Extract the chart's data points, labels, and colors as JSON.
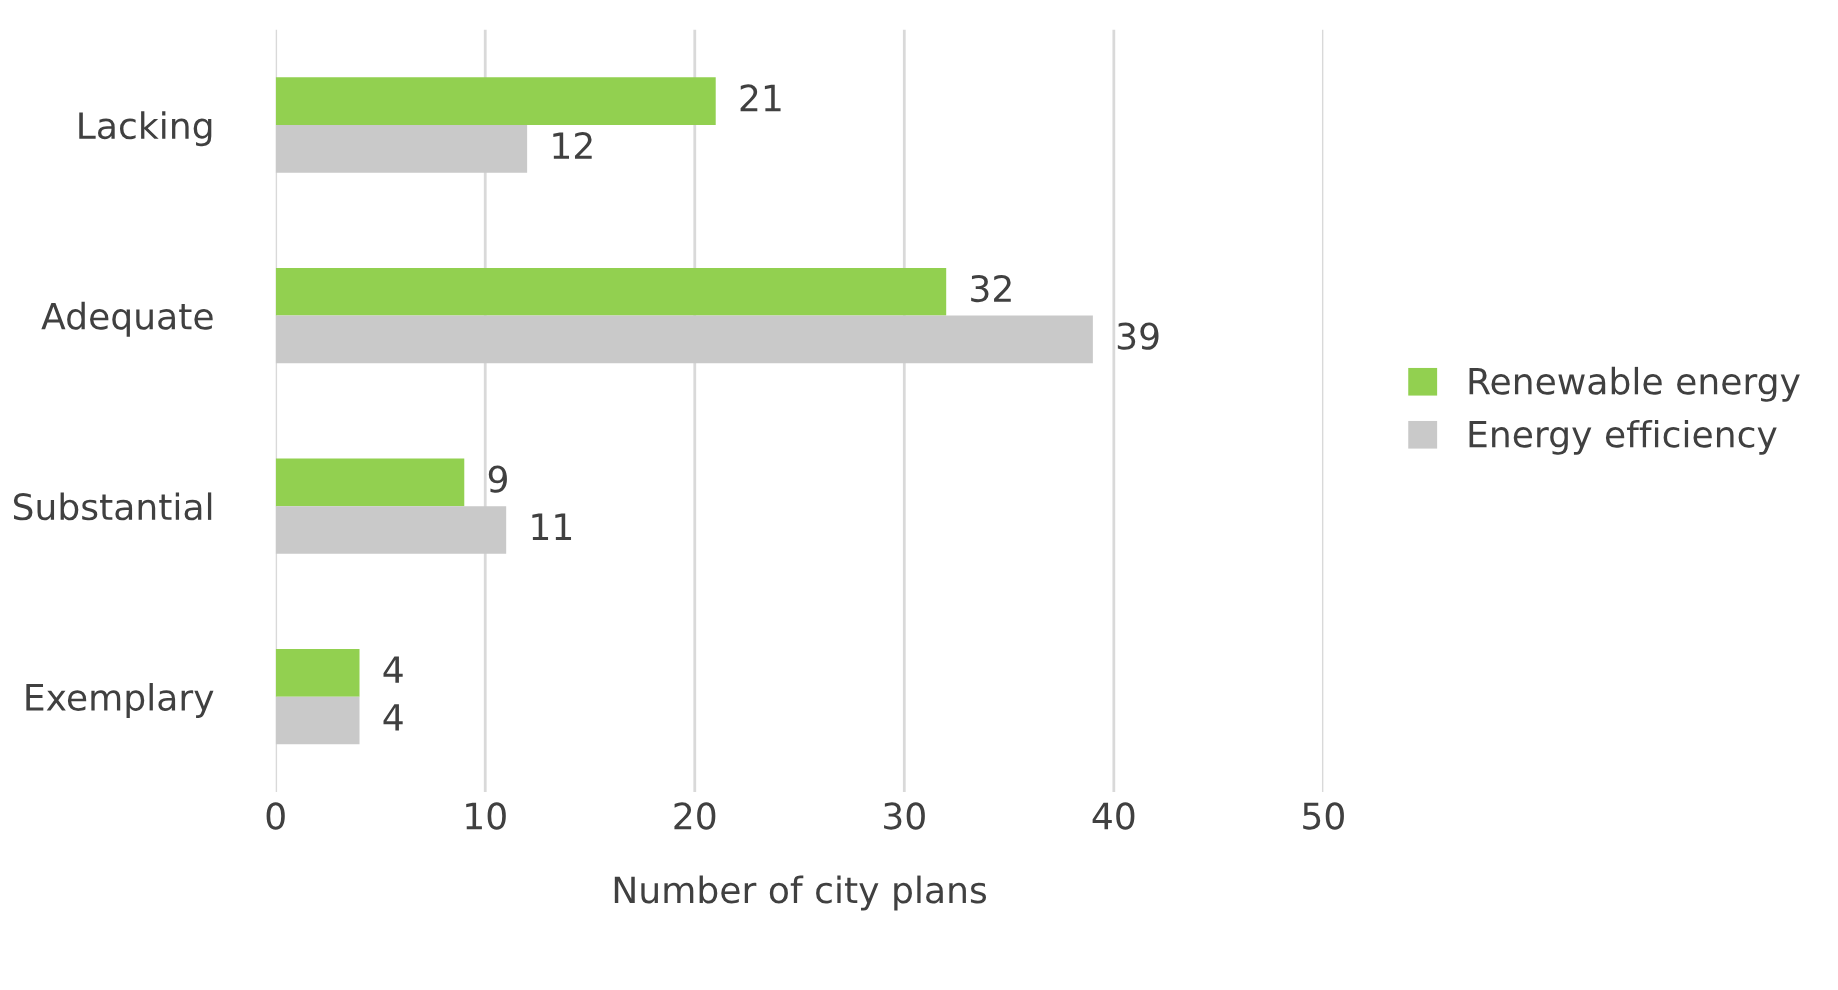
{
  "chart_data": {
    "type": "bar",
    "orientation": "horizontal",
    "xlabel": "Number of city plans",
    "categories": [
      "Lacking",
      "Adequate",
      "Substantial",
      "Exemplary"
    ],
    "series": [
      {
        "name": "Renewable energy",
        "color": "#92d050",
        "values": [
          21,
          32,
          9,
          4
        ]
      },
      {
        "name": "Energy efficiency",
        "color": "#c9c9c9",
        "values": [
          12,
          39,
          11,
          4
        ]
      }
    ],
    "xlim": [
      0,
      50
    ],
    "xticks": [
      0,
      10,
      20,
      30,
      40,
      50
    ],
    "grid": "x",
    "legend": "right",
    "data_labels": true
  }
}
